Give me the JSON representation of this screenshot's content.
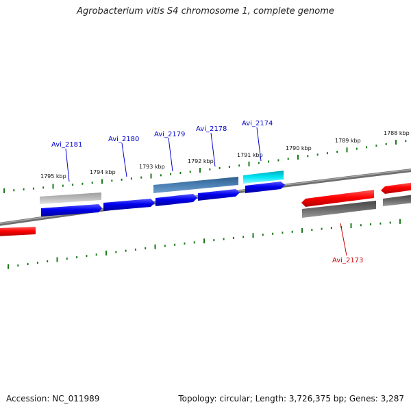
{
  "title": "Agrobacterium vitis S4 chromosome 1, complete genome",
  "footer": {
    "accession_text": "Accession: NC_011989",
    "stats_text": "Topology: circular; Length: 3,726,375 bp; Genes: 3,287"
  },
  "colors": {
    "backbone": "#7a7a7a",
    "tick": "#1a7a1a",
    "blue": "#0000ee",
    "steel": "#4a7fb0",
    "cyan": "#00e0f0",
    "red": "#ff0000",
    "gray": "#666666",
    "light_gray": "#bdbdbd",
    "label_blue": "#0000cc",
    "label_red": "#cc0000"
  },
  "scale": {
    "unit": "kbp",
    "labels": [
      "1795 kbp",
      "1794 kbp",
      "1793 kbp",
      "1792 kbp",
      "1791 kbp",
      "1790 kbp",
      "1789 kbp",
      "1788 kbp"
    ]
  },
  "gene_labels": [
    {
      "text": "Avi_2181",
      "color": "label_blue"
    },
    {
      "text": "Avi_2180",
      "color": "label_blue"
    },
    {
      "text": "Avi_2179",
      "color": "label_blue"
    },
    {
      "text": "Avi_2178",
      "color": "label_blue"
    },
    {
      "text": "Avi_2174",
      "color": "label_blue"
    },
    {
      "text": "Avi_2173",
      "color": "label_red"
    }
  ]
}
